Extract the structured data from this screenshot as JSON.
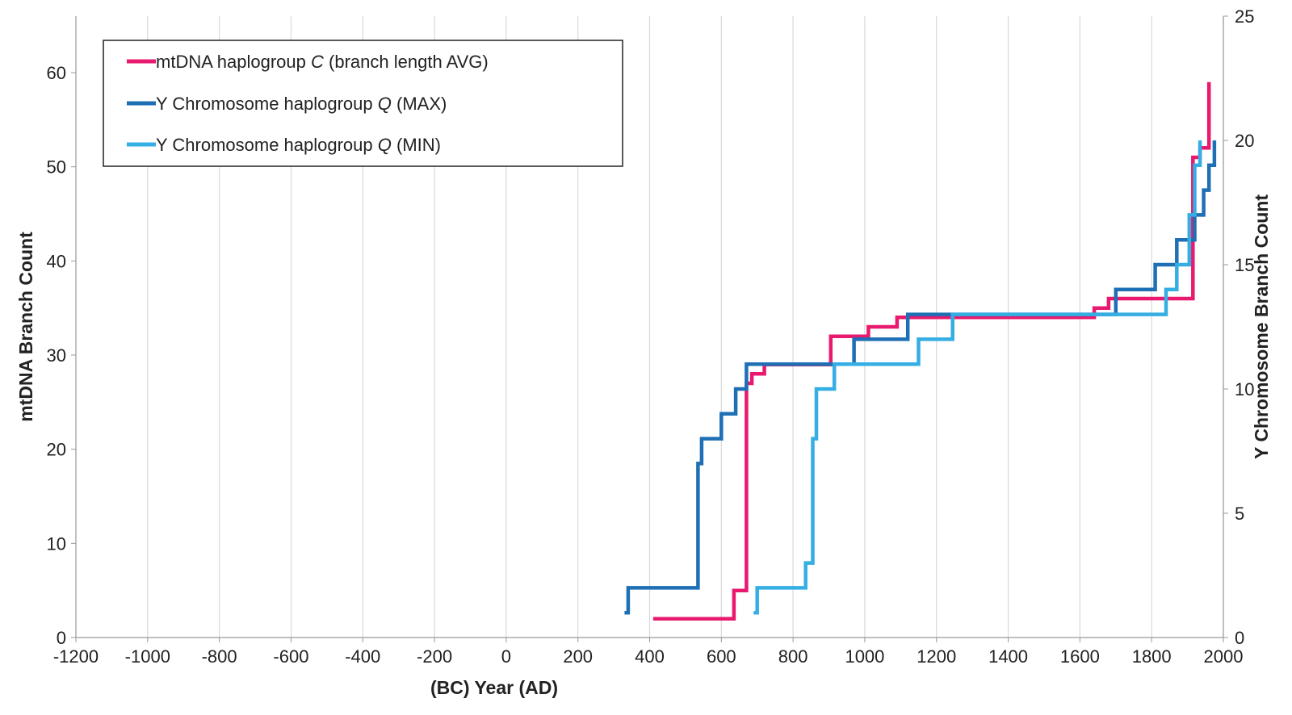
{
  "chart_data": {
    "type": "line",
    "title": "",
    "xlabel": "(BC) Year (AD)",
    "ylabel_left": "mtDNA Branch Count",
    "ylabel_right": "Y Chromosome Branch Count",
    "xlim": [
      -1200,
      2000
    ],
    "ylim_left": [
      0,
      66
    ],
    "ylim_right": [
      0,
      25
    ],
    "x_ticks": [
      -1200,
      -1000,
      -800,
      -600,
      -400,
      -200,
      0,
      200,
      400,
      600,
      800,
      1000,
      1200,
      1400,
      1600,
      1800,
      2000
    ],
    "x_tick_labels": [
      "-1200",
      "-1000",
      "-800",
      "-600",
      "-400",
      "-200",
      "0",
      "200",
      "400",
      "600",
      "800",
      "1000",
      "1200",
      "1400",
      "1600",
      "1800",
      "2000"
    ],
    "y_left_ticks": [
      0,
      10,
      20,
      30,
      40,
      50,
      60
    ],
    "y_left_tick_labels": [
      "0",
      "10",
      "20",
      "30",
      "40",
      "50",
      "60"
    ],
    "y_right_ticks": [
      0,
      5,
      10,
      15,
      20,
      25
    ],
    "y_right_tick_labels": [
      "0",
      "5",
      "10",
      "15",
      "20",
      "25"
    ],
    "grid": "vertical",
    "legend_position": "top-left",
    "series": [
      {
        "legend_text": "mtDNA haplogroup",
        "legend_italic": "C",
        "legend_suffix": "(branch length AVG)",
        "axis": "left",
        "color": "#e8196e",
        "step": true,
        "points": [
          [
            410,
            2
          ],
          [
            635,
            2
          ],
          [
            635,
            5
          ],
          [
            670,
            5
          ],
          [
            670,
            27
          ],
          [
            685,
            27
          ],
          [
            685,
            28
          ],
          [
            720,
            28
          ],
          [
            720,
            29
          ],
          [
            905,
            29
          ],
          [
            905,
            32
          ],
          [
            1010,
            32
          ],
          [
            1010,
            33
          ],
          [
            1090,
            33
          ],
          [
            1090,
            34
          ],
          [
            1640,
            34
          ],
          [
            1640,
            35
          ],
          [
            1680,
            35
          ],
          [
            1680,
            36
          ],
          [
            1915,
            36
          ],
          [
            1915,
            51
          ],
          [
            1935,
            51
          ],
          [
            1935,
            52
          ],
          [
            1960,
            52
          ],
          [
            1960,
            59
          ]
        ]
      },
      {
        "legend_text": "Y Chromosome haplogroup",
        "legend_italic": "Q",
        "legend_suffix": "(MAX)",
        "axis": "right",
        "color": "#1f6fb5",
        "step": true,
        "points": [
          [
            330,
            1
          ],
          [
            340,
            1
          ],
          [
            340,
            2
          ],
          [
            535,
            2
          ],
          [
            535,
            7
          ],
          [
            545,
            7
          ],
          [
            545,
            8
          ],
          [
            600,
            8
          ],
          [
            600,
            9
          ],
          [
            640,
            9
          ],
          [
            640,
            10
          ],
          [
            670,
            10
          ],
          [
            670,
            11
          ],
          [
            970,
            11
          ],
          [
            970,
            12
          ],
          [
            1120,
            12
          ],
          [
            1120,
            13
          ],
          [
            1700,
            13
          ],
          [
            1700,
            14
          ],
          [
            1810,
            14
          ],
          [
            1810,
            15
          ],
          [
            1870,
            15
          ],
          [
            1870,
            16
          ],
          [
            1920,
            16
          ],
          [
            1920,
            17
          ],
          [
            1945,
            17
          ],
          [
            1945,
            18
          ],
          [
            1960,
            18
          ],
          [
            1960,
            19
          ],
          [
            1975,
            19
          ],
          [
            1975,
            20
          ]
        ]
      },
      {
        "legend_text": "Y Chromosome haplogroup",
        "legend_italic": "Q",
        "legend_suffix": "(MIN)",
        "axis": "right",
        "color": "#35aee3",
        "step": true,
        "points": [
          [
            690,
            1
          ],
          [
            700,
            1
          ],
          [
            700,
            2
          ],
          [
            835,
            2
          ],
          [
            835,
            3
          ],
          [
            855,
            3
          ],
          [
            855,
            8
          ],
          [
            865,
            8
          ],
          [
            865,
            10
          ],
          [
            915,
            10
          ],
          [
            915,
            11
          ],
          [
            1150,
            11
          ],
          [
            1150,
            12
          ],
          [
            1245,
            12
          ],
          [
            1245,
            13
          ],
          [
            1840,
            13
          ],
          [
            1840,
            14
          ],
          [
            1870,
            14
          ],
          [
            1870,
            15
          ],
          [
            1905,
            15
          ],
          [
            1905,
            17
          ],
          [
            1920,
            17
          ],
          [
            1920,
            19
          ],
          [
            1935,
            19
          ],
          [
            1935,
            20
          ]
        ]
      }
    ]
  }
}
